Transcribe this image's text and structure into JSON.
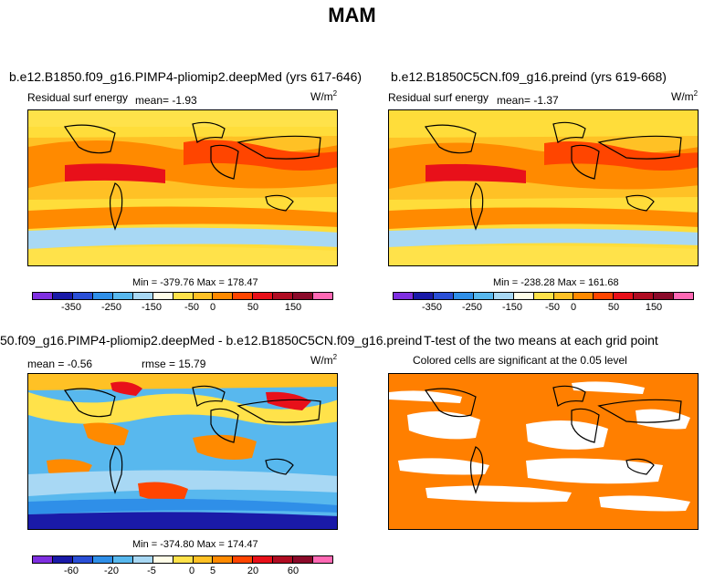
{
  "chart_data": [
    {
      "type": "heatmap",
      "title": "b.e12.B1850.f09_g16.PIMP4-pliomip2.deepMed (yrs 617-646)",
      "subtitle_left": "Residual surf energy",
      "mean_text": "mean=   -1.93",
      "units": "W/m",
      "units_exp": "2",
      "minmax": "Min = -379.76 Max = 178.47",
      "levels": [
        "-350",
        "-250",
        "-150",
        "-50",
        "0",
        "50",
        "150"
      ],
      "colors": [
        "#7f2fe0",
        "#1a1aa8",
        "#2a4fd6",
        "#2f8fe8",
        "#58b8ee",
        "#a8d8f4",
        "#fffde8",
        "#ffe24a",
        "#ffc125",
        "#ff8a00",
        "#ff4500",
        "#e8101a",
        "#b00c22",
        "#8b0a2a",
        "#ff69b4"
      ]
    },
    {
      "type": "heatmap",
      "title": "b.e12.B1850C5CN.f09_g16.preind (yrs 619-668)",
      "subtitle_left": "Residual surf energy",
      "mean_text": "mean=   -1.37",
      "units": "W/m",
      "units_exp": "2",
      "minmax": "Min = -238.28 Max = 161.68",
      "levels": [
        "-350",
        "-250",
        "-150",
        "-50",
        "0",
        "50",
        "150"
      ]
    },
    {
      "type": "heatmap",
      "title": "50.f09_g16.PIMP4-pliomip2.deepMed - b.e12.B1850C5CN.f09_g16.preind",
      "mean_text": "mean =   -0.56",
      "rmse_text": "rmse =   15.79",
      "units": "W/m",
      "units_exp": "2",
      "minmax": "Min = -374.80 Max = 174.47",
      "levels": [
        "-60",
        "-20",
        "-5",
        "0",
        "5",
        "20",
        "60"
      ]
    },
    {
      "type": "heatmap",
      "title": "T-test of the two means at each grid point",
      "subtitle": "Colored cells are significant at the 0.05 level"
    }
  ],
  "page": {
    "title": "MAM"
  }
}
